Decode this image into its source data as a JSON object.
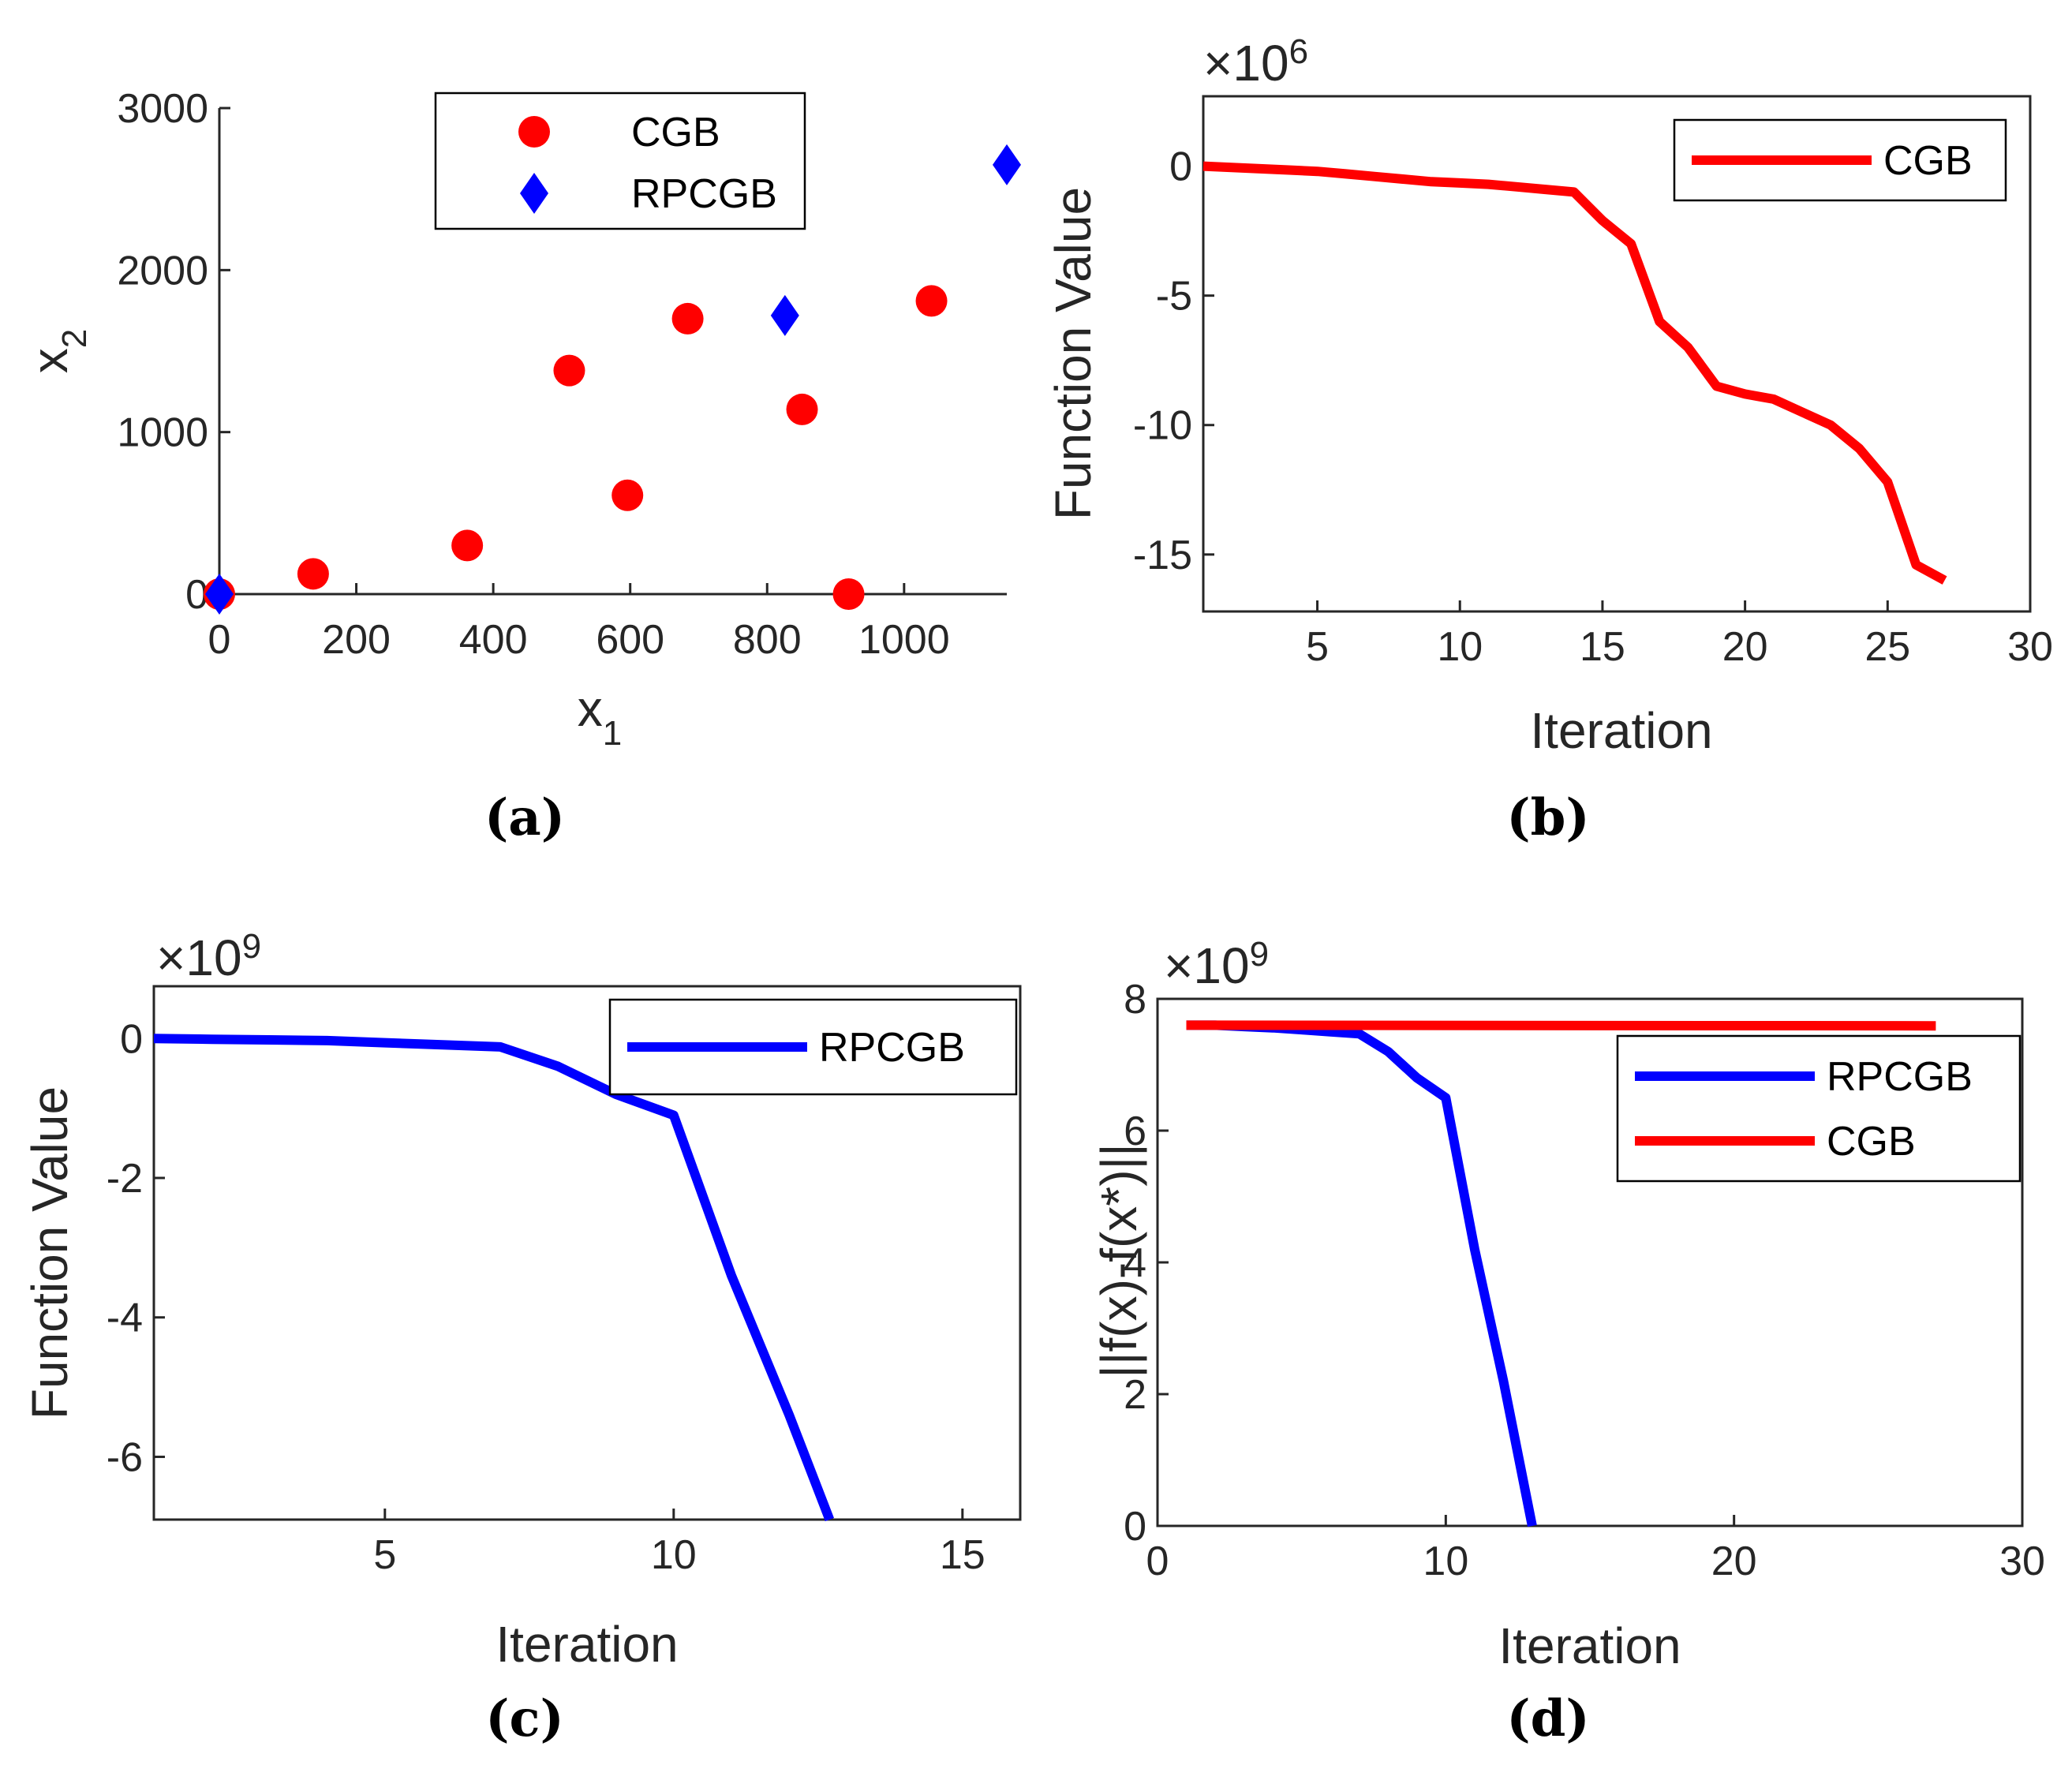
{
  "chart_data": [
    {
      "panel": "(a)",
      "type": "scatter",
      "xlabel_base": "x",
      "xlabel_sub": "1",
      "ylabel_base": "x",
      "ylabel_sub": "2",
      "xlim": [
        0,
        1150
      ],
      "ylim": [
        0,
        3000
      ],
      "xticks": [
        0,
        200,
        400,
        600,
        800,
        1000
      ],
      "yticks": [
        0,
        1000,
        2000,
        3000
      ],
      "series": [
        {
          "name": "CGB",
          "color": "#ff0000",
          "marker": "circle",
          "x": [
            0,
            137,
            362,
            511,
            596,
            684,
            851,
            919,
            1040
          ],
          "y": [
            0,
            125,
            300,
            1380,
            610,
            1700,
            1140,
            0,
            1810
          ]
        },
        {
          "name": "RPCGB",
          "color": "#0000ff",
          "marker": "diamond",
          "x": [
            0,
            826,
            1150
          ],
          "y": [
            0,
            1720,
            2650
          ]
        }
      ],
      "legend": "top-right-inside"
    },
    {
      "panel": "(b)",
      "type": "line",
      "exponent": "×10",
      "exponent_power": "6",
      "xlabel": "Iteration",
      "ylabel": "Function Value",
      "xlim": [
        1,
        30
      ],
      "ylim": [
        -17.2,
        2.7
      ],
      "xticks": [
        5,
        10,
        15,
        20,
        25,
        30
      ],
      "yticks": [
        0,
        -5,
        -10,
        -15
      ],
      "series": [
        {
          "name": "CGB",
          "color": "#ff0000",
          "x": [
            1,
            2,
            3,
            4,
            5,
            6,
            7,
            8,
            9,
            10,
            11,
            12,
            13,
            14,
            15,
            16,
            17,
            18,
            19,
            20,
            21,
            22,
            23,
            24,
            25,
            26,
            27
          ],
          "y": [
            0,
            -0.05,
            -0.1,
            -0.15,
            -0.2,
            -0.3,
            -0.4,
            -0.5,
            -0.6,
            -0.65,
            -0.7,
            -0.8,
            -0.9,
            -1.0,
            -2.1,
            -3.0,
            -6.0,
            -7.0,
            -8.5,
            -8.8,
            -9.0,
            -9.5,
            -10.0,
            -10.9,
            -12.2,
            -15.4,
            -16.0
          ]
        }
      ],
      "legend": "top-right"
    },
    {
      "panel": "(c)",
      "type": "line",
      "exponent": "×10",
      "exponent_power": "9",
      "xlabel": "Iteration",
      "ylabel": "Function Value",
      "xlim": [
        1,
        16
      ],
      "ylim": [
        -6.9,
        0.75
      ],
      "xticks": [
        5,
        10,
        15
      ],
      "yticks": [
        0,
        -2,
        -4,
        -6
      ],
      "series": [
        {
          "name": "RPCGB",
          "color": "#0000ff",
          "x": [
            1,
            2,
            3,
            4,
            5,
            6,
            7,
            8,
            9,
            10,
            11,
            12,
            12.7
          ],
          "y": [
            0,
            -0.01,
            -0.02,
            -0.03,
            -0.06,
            -0.09,
            -0.12,
            -0.4,
            -0.8,
            -1.1,
            -3.4,
            -5.4,
            -6.9
          ]
        }
      ],
      "legend": "top-right"
    },
    {
      "panel": "(d)",
      "type": "line",
      "exponent": "×10",
      "exponent_power": "9",
      "xlabel": "Iteration",
      "ylabel": "||f(x)-f(x*)||",
      "xlim": [
        0,
        30
      ],
      "ylim": [
        0,
        8
      ],
      "xticks": [
        0,
        10,
        20,
        30
      ],
      "yticks": [
        0,
        2,
        4,
        6,
        8
      ],
      "series": [
        {
          "name": "RPCGB",
          "color": "#0000ff",
          "x": [
            1,
            2,
            3,
            4,
            5,
            6,
            7,
            8,
            9,
            10,
            11,
            12,
            13
          ],
          "y": [
            7.6,
            7.6,
            7.58,
            7.56,
            7.53,
            7.5,
            7.47,
            7.2,
            6.8,
            6.5,
            4.2,
            2.2,
            0
          ]
        },
        {
          "name": "CGB",
          "color": "#ff0000",
          "x": [
            1,
            27
          ],
          "y": [
            7.6,
            7.59
          ]
        }
      ],
      "legend": "right"
    }
  ]
}
